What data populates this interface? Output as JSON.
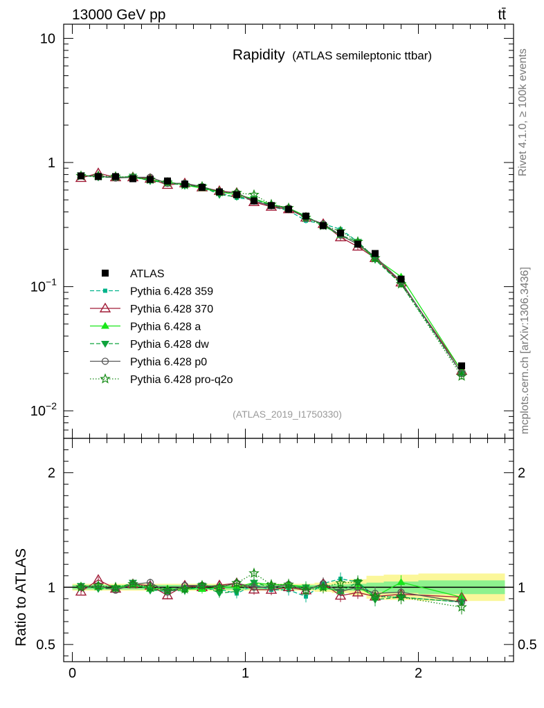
{
  "header": {
    "left": "13000 GeV pp",
    "right": "tt̄"
  },
  "side_labels": {
    "top": "Rivet 4.1.0, ≥ 100k events",
    "bottom": "mcplots.cern.ch [arXiv:1306.3436]"
  },
  "chart_data": {
    "type": "line",
    "title": "Rapidity",
    "subtitle": "(ATLAS semileptonic ttbar)",
    "analysis_ref": "(ATLAS_2019_I1750330)",
    "xlabel": "",
    "ylabel": "",
    "ratio_ylabel": "Ratio to ATLAS",
    "xlim": [
      -0.05,
      2.55
    ],
    "ylim": [
      0.006,
      13
    ],
    "yscale": "log",
    "ratio_ylim": [
      0.35,
      2.3
    ],
    "x_ticks": [
      "0",
      "1",
      "2"
    ],
    "x_tick_values": [
      0,
      1,
      2
    ],
    "y_ticks": [
      {
        "value": 10,
        "label": "10",
        "sup": ""
      },
      {
        "value": 1,
        "label": "1",
        "sup": ""
      },
      {
        "value": 0.1,
        "label": "10",
        "sup": "−1"
      },
      {
        "value": 0.01,
        "label": "10",
        "sup": "−2"
      }
    ],
    "ratio_ticks": [
      "0.5",
      "1",
      "2"
    ],
    "ratio_tick_values": [
      0.5,
      1,
      2
    ],
    "bins": [
      [
        0,
        0.1
      ],
      [
        0.1,
        0.2
      ],
      [
        0.2,
        0.3
      ],
      [
        0.3,
        0.4
      ],
      [
        0.4,
        0.5
      ],
      [
        0.5,
        0.6
      ],
      [
        0.6,
        0.7
      ],
      [
        0.7,
        0.8
      ],
      [
        0.8,
        0.9
      ],
      [
        0.9,
        1.0
      ],
      [
        1.0,
        1.1
      ],
      [
        1.1,
        1.2
      ],
      [
        1.2,
        1.3
      ],
      [
        1.3,
        1.4
      ],
      [
        1.4,
        1.5
      ],
      [
        1.5,
        1.6
      ],
      [
        1.6,
        1.7
      ],
      [
        1.7,
        1.8
      ],
      [
        1.8,
        2.0
      ],
      [
        2.0,
        2.5
      ]
    ],
    "x": [
      0.05,
      0.15,
      0.25,
      0.35,
      0.45,
      0.55,
      0.65,
      0.75,
      0.85,
      0.95,
      1.05,
      1.15,
      1.25,
      1.35,
      1.45,
      1.55,
      1.65,
      1.75,
      1.9,
      2.25
    ],
    "data": {
      "name": "ATLAS",
      "values": [
        0.78,
        0.77,
        0.77,
        0.74,
        0.73,
        0.71,
        0.67,
        0.63,
        0.58,
        0.55,
        0.49,
        0.45,
        0.42,
        0.37,
        0.31,
        0.27,
        0.22,
        0.185,
        0.115,
        0.023
      ],
      "stat_band": [
        0.02,
        0.02,
        0.02,
        0.02,
        0.02,
        0.02,
        0.02,
        0.02,
        0.02,
        0.02,
        0.02,
        0.02,
        0.02,
        0.02,
        0.02,
        0.025,
        0.03,
        0.04,
        0.05,
        0.06
      ],
      "total_band": [
        0.03,
        0.03,
        0.03,
        0.03,
        0.03,
        0.03,
        0.03,
        0.03,
        0.03,
        0.03,
        0.03,
        0.03,
        0.03,
        0.03,
        0.04,
        0.05,
        0.07,
        0.1,
        0.11,
        0.12
      ]
    },
    "series": [
      {
        "name": "Pythia 6.428 359",
        "color": "#00b38a",
        "marker": "square-small",
        "dash": "6,3",
        "values": [
          0.78,
          0.77,
          0.76,
          0.76,
          0.72,
          0.68,
          0.67,
          0.62,
          0.57,
          0.52,
          0.5,
          0.44,
          0.41,
          0.34,
          0.32,
          0.29,
          0.23,
          0.17,
          0.105,
          0.02
        ]
      },
      {
        "name": "Pythia 6.428 370",
        "color": "#a01a36",
        "marker": "triangle-open",
        "dash": "",
        "values": [
          0.75,
          0.82,
          0.76,
          0.76,
          0.74,
          0.66,
          0.68,
          0.63,
          0.59,
          0.57,
          0.48,
          0.44,
          0.42,
          0.36,
          0.32,
          0.25,
          0.21,
          0.17,
          0.108,
          0.021
        ]
      },
      {
        "name": "Pythia 6.428 a",
        "color": "#19e619",
        "marker": "triangle",
        "dash": "",
        "values": [
          0.79,
          0.77,
          0.76,
          0.76,
          0.72,
          0.7,
          0.66,
          0.62,
          0.58,
          0.55,
          0.51,
          0.46,
          0.43,
          0.37,
          0.31,
          0.26,
          0.22,
          0.17,
          0.12,
          0.021
        ]
      },
      {
        "name": "Pythia 6.428 dw",
        "color": "#0fa33c",
        "marker": "triangle-down",
        "dash": "6,3",
        "values": [
          0.79,
          0.76,
          0.76,
          0.77,
          0.71,
          0.69,
          0.65,
          0.64,
          0.55,
          0.53,
          0.51,
          0.45,
          0.42,
          0.37,
          0.31,
          0.26,
          0.23,
          0.165,
          0.105,
          0.02
        ]
      },
      {
        "name": "Pythia 6.428 p0",
        "color": "#555555",
        "marker": "circle-open",
        "dash": "",
        "values": [
          0.78,
          0.78,
          0.75,
          0.76,
          0.76,
          0.68,
          0.68,
          0.64,
          0.58,
          0.57,
          0.49,
          0.45,
          0.43,
          0.36,
          0.32,
          0.26,
          0.22,
          0.175,
          0.11,
          0.02
        ]
      },
      {
        "name": "Pythia 6.428 pro-q2o",
        "color": "#138a13",
        "marker": "star-open",
        "dash": "1.5,2.5",
        "values": [
          0.78,
          0.78,
          0.77,
          0.76,
          0.73,
          0.69,
          0.66,
          0.64,
          0.58,
          0.57,
          0.55,
          0.46,
          0.43,
          0.36,
          0.31,
          0.28,
          0.23,
          0.17,
          0.105,
          0.019
        ]
      }
    ],
    "legend": {
      "position": "lower-left",
      "entries": [
        "ATLAS",
        "Pythia 6.428 359",
        "Pythia 6.428 370",
        "Pythia 6.428 a",
        "Pythia 6.428 dw",
        "Pythia 6.428 p0",
        "Pythia 6.428 pro-q2o"
      ]
    }
  }
}
